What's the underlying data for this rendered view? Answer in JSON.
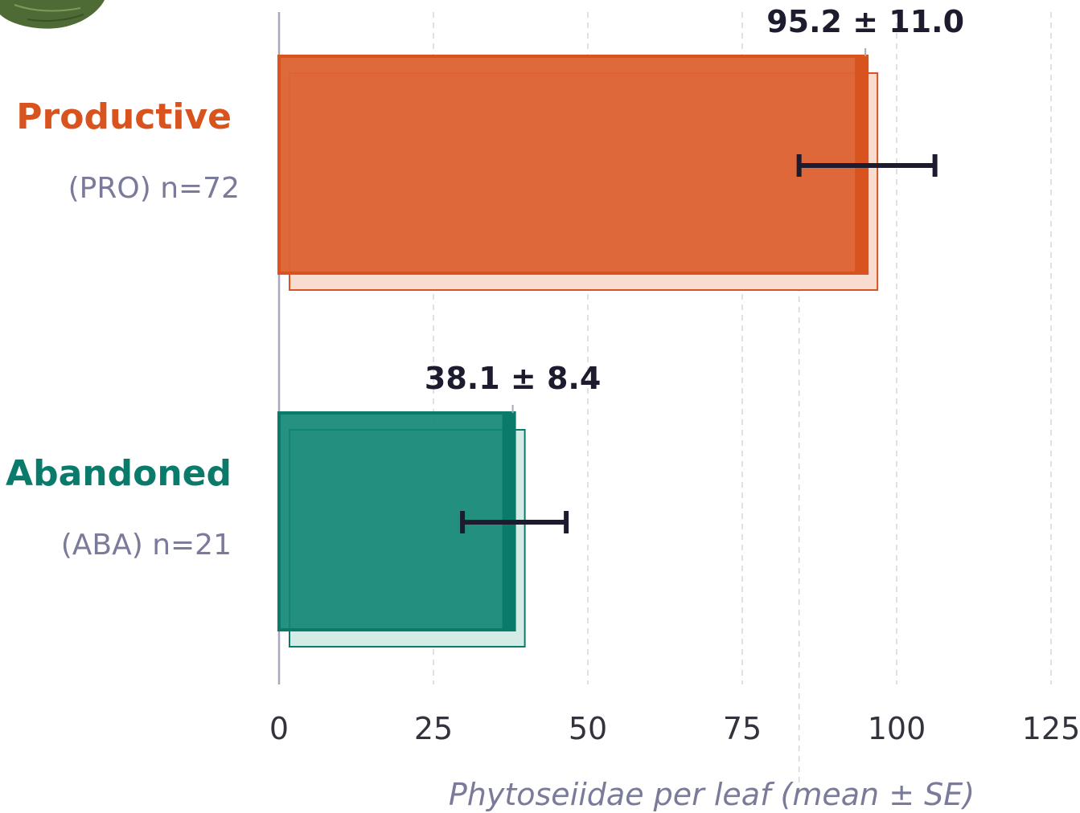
{
  "chart_data": {
    "type": "bar",
    "orientation": "horizontal",
    "categories": [
      {
        "name": "Productive",
        "sublabel": "(PRO)  n=72",
        "value": 95.2,
        "se": 11.0,
        "label": "95.2 ± 11.0",
        "color": "#d9531e",
        "fill": "#dd6b3e",
        "back_fill": "#f9dcd0"
      },
      {
        "name": "Abandoned",
        "sublabel": "(ABA)  n=21",
        "value": 38.1,
        "se": 8.4,
        "label": "38.1 ± 8.4",
        "color": "#0a7b6b",
        "fill": "#26907f",
        "back_fill": "#d5ebe6"
      }
    ],
    "xlim": [
      0,
      125
    ],
    "xticks": [
      "0",
      "25",
      "50",
      "75",
      "100",
      "125"
    ],
    "xlabel": "Phytoseiidae per leaf  (mean ± SE)",
    "grid": "vertical dashed",
    "error_bar_color": "#1c1c2e"
  }
}
